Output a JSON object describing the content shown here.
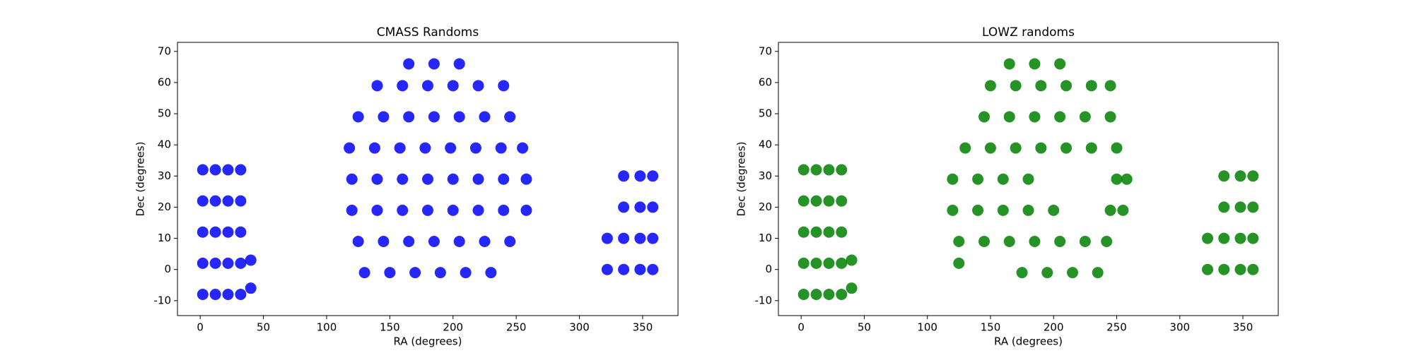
{
  "chart_data": [
    {
      "type": "scatter",
      "title": "CMASS Randoms",
      "xlabel": "RA (degrees)",
      "ylabel": "Dec (degrees)",
      "color": "#0000ff",
      "xlim": [
        -18,
        378
      ],
      "ylim": [
        -14.8,
        72.9
      ],
      "xticks": [
        0,
        50,
        100,
        150,
        200,
        250,
        300,
        350
      ],
      "yticks": [
        -10,
        0,
        10,
        20,
        30,
        40,
        50,
        60,
        70
      ],
      "series": [
        {
          "name": "CMASS Randoms",
          "color": "#0000ff",
          "x": [
            2,
            12,
            22,
            32,
            2,
            12,
            22,
            32,
            2,
            12,
            22,
            32,
            2,
            12,
            22,
            32,
            2,
            12,
            22,
            32,
            40,
            40,
            130,
            150,
            170,
            190,
            210,
            230,
            125,
            145,
            165,
            185,
            205,
            225,
            245,
            120,
            140,
            160,
            180,
            200,
            220,
            240,
            258,
            120,
            140,
            160,
            180,
            200,
            220,
            240,
            258,
            118,
            138,
            158,
            178,
            198,
            218,
            238,
            255,
            125,
            145,
            165,
            185,
            205,
            225,
            245,
            140,
            160,
            180,
            200,
            220,
            240,
            165,
            185,
            205,
            322,
            335,
            348,
            358,
            322,
            335,
            348,
            358,
            335,
            348,
            358,
            335,
            348,
            358
          ],
          "values": [
            -8,
            -8,
            -8,
            -8,
            2,
            2,
            2,
            2,
            12,
            12,
            12,
            12,
            22,
            22,
            22,
            22,
            32,
            32,
            32,
            32,
            -6,
            3,
            -1,
            -1,
            -1,
            -1,
            -1,
            -1,
            9,
            9,
            9,
            9,
            9,
            9,
            9,
            19,
            19,
            19,
            19,
            19,
            19,
            19,
            19,
            29,
            29,
            29,
            29,
            29,
            29,
            29,
            29,
            39,
            39,
            39,
            39,
            39,
            39,
            39,
            39,
            49,
            49,
            49,
            49,
            49,
            49,
            49,
            59,
            59,
            59,
            59,
            59,
            59,
            66,
            66,
            66,
            0,
            0,
            0,
            0,
            10,
            10,
            10,
            10,
            20,
            20,
            20,
            30,
            30,
            30
          ]
        }
      ]
    },
    {
      "type": "scatter",
      "title": "LOWZ randoms",
      "xlabel": "RA (degrees)",
      "ylabel": "Dec (degrees)",
      "color": "#008000",
      "xlim": [
        -18,
        378
      ],
      "ylim": [
        -14.8,
        72.9
      ],
      "xticks": [
        0,
        50,
        100,
        150,
        200,
        250,
        300,
        350
      ],
      "yticks": [
        -10,
        0,
        10,
        20,
        30,
        40,
        50,
        60,
        70
      ],
      "series": [
        {
          "name": "LOWZ randoms",
          "color": "#008000",
          "x": [
            2,
            12,
            22,
            32,
            2,
            12,
            22,
            32,
            2,
            12,
            22,
            32,
            2,
            12,
            22,
            32,
            2,
            12,
            22,
            32,
            40,
            40,
            125,
            175,
            195,
            215,
            235,
            125,
            145,
            165,
            185,
            205,
            225,
            242,
            120,
            140,
            160,
            180,
            200,
            245,
            255,
            120,
            140,
            160,
            180,
            250,
            258,
            130,
            150,
            170,
            190,
            210,
            230,
            250,
            145,
            165,
            185,
            205,
            225,
            245,
            150,
            170,
            190,
            210,
            230,
            245,
            165,
            185,
            205,
            322,
            335,
            348,
            358,
            322,
            335,
            348,
            358,
            335,
            348,
            358,
            335,
            348,
            358
          ],
          "values": [
            -8,
            -8,
            -8,
            -8,
            2,
            2,
            2,
            2,
            12,
            12,
            12,
            12,
            22,
            22,
            22,
            22,
            32,
            32,
            32,
            32,
            -6,
            3,
            2,
            -1,
            -1,
            -1,
            -1,
            9,
            9,
            9,
            9,
            9,
            9,
            9,
            19,
            19,
            19,
            19,
            19,
            19,
            19,
            29,
            29,
            29,
            29,
            29,
            29,
            39,
            39,
            39,
            39,
            39,
            39,
            39,
            49,
            49,
            49,
            49,
            49,
            49,
            59,
            59,
            59,
            59,
            59,
            59,
            66,
            66,
            66,
            0,
            0,
            0,
            0,
            10,
            10,
            10,
            10,
            20,
            20,
            20,
            30,
            30,
            30
          ]
        }
      ]
    }
  ]
}
